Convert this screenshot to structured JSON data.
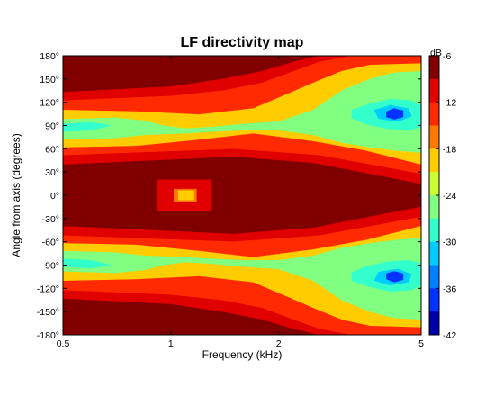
{
  "chart_data": {
    "type": "heatmap",
    "title": "LF directivity map",
    "xlabel": "Frequency (kHz)",
    "ylabel": "Angle from axis (degrees)",
    "x_scale": "log",
    "xlim": [
      0.5,
      5
    ],
    "ylim": [
      -180,
      180
    ],
    "x_ticks": [
      {
        "value": 0.5,
        "label": "0.5"
      },
      {
        "value": 1,
        "label": "1"
      },
      {
        "value": 2,
        "label": "2"
      },
      {
        "value": 5,
        "label": "5"
      }
    ],
    "y_ticks": [
      {
        "value": 180,
        "label": "180°"
      },
      {
        "value": 150,
        "label": "150°"
      },
      {
        "value": 120,
        "label": "120°"
      },
      {
        "value": 90,
        "label": "90°"
      },
      {
        "value": 60,
        "label": "60°"
      },
      {
        "value": 30,
        "label": "30°"
      },
      {
        "value": 0,
        "label": "0°"
      },
      {
        "value": -30,
        "label": "-30°"
      },
      {
        "value": -60,
        "label": "-60°"
      },
      {
        "value": -90,
        "label": "-90°"
      },
      {
        "value": -120,
        "label": "-120°"
      },
      {
        "value": -150,
        "label": "-150°"
      },
      {
        "value": -180,
        "label": "-180°"
      }
    ],
    "colorbar": {
      "label": "dB",
      "range": [
        -42,
        -6
      ],
      "ticks": [
        {
          "value": -6,
          "label": "-6"
        },
        {
          "value": -12,
          "label": "-12"
        },
        {
          "value": -18,
          "label": "-18"
        },
        {
          "value": -24,
          "label": "-24"
        },
        {
          "value": -30,
          "label": "-30"
        },
        {
          "value": -36,
          "label": "-36"
        },
        {
          "value": -42,
          "label": "-42"
        }
      ],
      "levels": [
        {
          "from": -6,
          "to": -9,
          "color": "#800000"
        },
        {
          "from": -9,
          "to": -12,
          "color": "#e00000"
        },
        {
          "from": -12,
          "to": -15,
          "color": "#ff2a00"
        },
        {
          "from": -15,
          "to": -18,
          "color": "#ff7800"
        },
        {
          "from": -18,
          "to": -21,
          "color": "#ffcc00"
        },
        {
          "from": -21,
          "to": -24,
          "color": "#ccff33"
        },
        {
          "from": -24,
          "to": -27,
          "color": "#80ff80"
        },
        {
          "from": -27,
          "to": -30,
          "color": "#33ffcc"
        },
        {
          "from": -30,
          "to": -33,
          "color": "#00ccff"
        },
        {
          "from": -33,
          "to": -36,
          "color": "#0080ff"
        },
        {
          "from": -36,
          "to": -39,
          "color": "#0033ff"
        },
        {
          "from": -39,
          "to": -42,
          "color": "#0000aa"
        }
      ]
    },
    "contour_regions": [
      {
        "level_db": -7,
        "color": "#800000",
        "points": [
          [
            0.5,
            180
          ],
          [
            5,
            180
          ],
          [
            5,
            -180
          ],
          [
            0.5,
            -180
          ]
        ]
      },
      {
        "level_db": -10,
        "color": "#e00000",
        "points": [
          [
            0.5,
            133
          ],
          [
            1.0,
            140
          ],
          [
            1.4,
            150
          ],
          [
            1.8,
            160
          ],
          [
            2.2,
            172
          ],
          [
            2.6,
            180
          ],
          [
            5,
            180
          ],
          [
            5,
            -180
          ],
          [
            2.6,
            -180
          ],
          [
            2.2,
            -172
          ],
          [
            1.8,
            -160
          ],
          [
            1.4,
            -150
          ],
          [
            1.0,
            -140
          ],
          [
            0.5,
            -133
          ],
          [
            0.5,
            -40
          ],
          [
            1.5,
            -50
          ],
          [
            2.5,
            -42
          ],
          [
            5,
            -15
          ],
          [
            5,
            15
          ],
          [
            2.5,
            42
          ],
          [
            1.5,
            50
          ],
          [
            0.5,
            40
          ]
        ]
      },
      {
        "level_db": -10,
        "color": "#e00000",
        "points": [
          [
            0.92,
            20
          ],
          [
            1.3,
            20
          ],
          [
            1.3,
            -20
          ],
          [
            0.92,
            -20
          ]
        ]
      },
      {
        "level_db": -14,
        "color": "#ff2a00",
        "points": [
          [
            0.5,
            122
          ],
          [
            1.0,
            128
          ],
          [
            1.4,
            135
          ],
          [
            1.8,
            145
          ],
          [
            2.2,
            160
          ],
          [
            2.6,
            172
          ],
          [
            3.2,
            180
          ],
          [
            5,
            180
          ],
          [
            5,
            -180
          ],
          [
            3.2,
            -180
          ],
          [
            2.6,
            -172
          ],
          [
            2.2,
            -160
          ],
          [
            1.8,
            -145
          ],
          [
            1.4,
            -135
          ],
          [
            1.0,
            -128
          ],
          [
            0.5,
            -122
          ],
          [
            0.5,
            -52
          ],
          [
            1.5,
            -60
          ],
          [
            2.6,
            -52
          ],
          [
            5,
            -28
          ],
          [
            5,
            28
          ],
          [
            2.6,
            52
          ],
          [
            1.5,
            60
          ],
          [
            0.5,
            52
          ]
        ]
      },
      {
        "level_db": -19,
        "color": "#ffcc00",
        "points": [
          [
            0.5,
            110
          ],
          [
            0.8,
            108
          ],
          [
            1.2,
            104
          ],
          [
            1.7,
            112
          ],
          [
            2.1,
            130
          ],
          [
            2.5,
            145
          ],
          [
            3.0,
            160
          ],
          [
            3.6,
            168
          ],
          [
            5,
            170
          ],
          [
            5,
            -170
          ],
          [
            3.6,
            -168
          ],
          [
            3.0,
            -160
          ],
          [
            2.5,
            -145
          ],
          [
            2.1,
            -130
          ],
          [
            1.7,
            -112
          ],
          [
            1.2,
            -104
          ],
          [
            0.8,
            -108
          ],
          [
            0.5,
            -110
          ],
          [
            0.5,
            -62
          ],
          [
            0.8,
            -64
          ],
          [
            1.2,
            -72
          ],
          [
            1.7,
            -80
          ],
          [
            2.5,
            -70
          ],
          [
            3.5,
            -58
          ],
          [
            5,
            -40
          ],
          [
            5,
            40
          ],
          [
            3.5,
            58
          ],
          [
            2.5,
            70
          ],
          [
            1.7,
            80
          ],
          [
            1.2,
            72
          ],
          [
            0.8,
            64
          ],
          [
            0.5,
            62
          ]
        ]
      },
      {
        "level_db": -25,
        "color": "#80ff80",
        "points": [
          [
            0.5,
            98
          ],
          [
            0.7,
            100
          ],
          [
            0.85,
            96
          ],
          [
            0.95,
            90
          ],
          [
            1.1,
            86
          ],
          [
            1.3,
            88
          ],
          [
            1.6,
            92
          ],
          [
            2.0,
            95
          ],
          [
            2.5,
            110
          ],
          [
            3.0,
            135
          ],
          [
            3.6,
            150
          ],
          [
            4.2,
            158
          ],
          [
            5,
            160
          ],
          [
            5,
            55
          ],
          [
            4.2,
            58
          ],
          [
            3.6,
            62
          ],
          [
            3.0,
            68
          ],
          [
            2.5,
            78
          ],
          [
            2.0,
            84
          ],
          [
            1.6,
            84
          ],
          [
            1.3,
            82
          ],
          [
            1.1,
            80
          ],
          [
            0.85,
            78
          ],
          [
            0.7,
            74
          ],
          [
            0.5,
            72
          ]
        ]
      },
      {
        "level_db": -25,
        "color": "#80ff80",
        "points": [
          [
            0.5,
            -98
          ],
          [
            0.7,
            -100
          ],
          [
            0.85,
            -96
          ],
          [
            0.95,
            -90
          ],
          [
            1.1,
            -86
          ],
          [
            1.3,
            -88
          ],
          [
            1.6,
            -92
          ],
          [
            2.0,
            -95
          ],
          [
            2.5,
            -110
          ],
          [
            3.0,
            -135
          ],
          [
            3.6,
            -150
          ],
          [
            4.2,
            -158
          ],
          [
            5,
            -160
          ],
          [
            5,
            -55
          ],
          [
            4.2,
            -58
          ],
          [
            3.6,
            -62
          ],
          [
            3.0,
            -68
          ],
          [
            2.5,
            -78
          ],
          [
            2.0,
            -84
          ],
          [
            1.6,
            -84
          ],
          [
            1.3,
            -82
          ],
          [
            1.1,
            -80
          ],
          [
            0.85,
            -78
          ],
          [
            0.7,
            -74
          ],
          [
            0.5,
            -72
          ]
        ]
      },
      {
        "level_db": -28,
        "color": "#33ffcc",
        "points": [
          [
            0.5,
            92
          ],
          [
            0.6,
            94
          ],
          [
            0.68,
            90
          ],
          [
            0.6,
            84
          ],
          [
            0.5,
            82
          ]
        ]
      },
      {
        "level_db": -28,
        "color": "#33ffcc",
        "points": [
          [
            0.5,
            -92
          ],
          [
            0.6,
            -94
          ],
          [
            0.68,
            -90
          ],
          [
            0.6,
            -84
          ],
          [
            0.5,
            -82
          ]
        ]
      },
      {
        "level_db": -28,
        "color": "#33ffcc",
        "points": [
          [
            3.2,
            110
          ],
          [
            3.6,
            118
          ],
          [
            4.1,
            124
          ],
          [
            4.7,
            122
          ],
          [
            5,
            116
          ],
          [
            5,
            88
          ],
          [
            4.6,
            84
          ],
          [
            4.0,
            86
          ],
          [
            3.5,
            92
          ],
          [
            3.2,
            100
          ]
        ]
      },
      {
        "level_db": -28,
        "color": "#33ffcc",
        "points": [
          [
            3.2,
            -110
          ],
          [
            3.6,
            -118
          ],
          [
            4.1,
            -124
          ],
          [
            4.7,
            -122
          ],
          [
            5,
            -116
          ],
          [
            5,
            -88
          ],
          [
            4.6,
            -84
          ],
          [
            4.0,
            -86
          ],
          [
            3.5,
            -92
          ],
          [
            3.2,
            -100
          ]
        ]
      },
      {
        "level_db": -33,
        "color": "#00ccff",
        "points": [
          [
            3.7,
            110
          ],
          [
            4.1,
            116
          ],
          [
            4.6,
            112
          ],
          [
            4.7,
            102
          ],
          [
            4.3,
            95
          ],
          [
            3.8,
            99
          ]
        ]
      },
      {
        "level_db": -33,
        "color": "#00ccff",
        "points": [
          [
            3.7,
            -110
          ],
          [
            4.1,
            -116
          ],
          [
            4.6,
            -112
          ],
          [
            4.7,
            -102
          ],
          [
            4.3,
            -95
          ],
          [
            3.8,
            -99
          ]
        ]
      },
      {
        "level_db": -38,
        "color": "#0033ff",
        "points": [
          [
            4.0,
            108
          ],
          [
            4.2,
            112
          ],
          [
            4.45,
            109
          ],
          [
            4.45,
            101
          ],
          [
            4.2,
            98
          ],
          [
            4.0,
            101
          ]
        ]
      },
      {
        "level_db": -38,
        "color": "#0033ff",
        "points": [
          [
            4.0,
            -108
          ],
          [
            4.2,
            -112
          ],
          [
            4.45,
            -109
          ],
          [
            4.45,
            -101
          ],
          [
            4.2,
            -98
          ],
          [
            4.0,
            -101
          ]
        ]
      },
      {
        "level_db": -17,
        "color": "#ff7800",
        "points": [
          [
            1.02,
            8
          ],
          [
            1.18,
            8
          ],
          [
            1.18,
            -8
          ],
          [
            1.02,
            -8
          ]
        ]
      },
      {
        "level_db": -19,
        "color": "#ffcc00",
        "points": [
          [
            1.05,
            6
          ],
          [
            1.16,
            6
          ],
          [
            1.16,
            -6
          ],
          [
            1.05,
            -6
          ]
        ]
      }
    ]
  }
}
